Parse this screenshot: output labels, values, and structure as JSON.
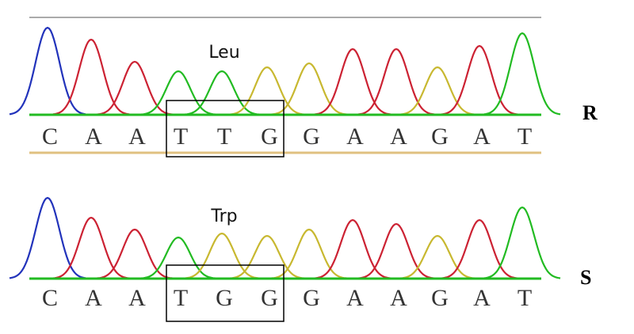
{
  "panels": [
    {
      "codon_label": "Leu",
      "sample": "R",
      "bases": [
        "C",
        "A",
        "A",
        "T",
        "T",
        "G",
        "G",
        "A",
        "A",
        "G",
        "A",
        "T"
      ]
    },
    {
      "codon_label": "Trp",
      "sample": "S",
      "bases": [
        "C",
        "A",
        "A",
        "T",
        "G",
        "G",
        "G",
        "A",
        "A",
        "G",
        "A",
        "T"
      ]
    }
  ]
}
